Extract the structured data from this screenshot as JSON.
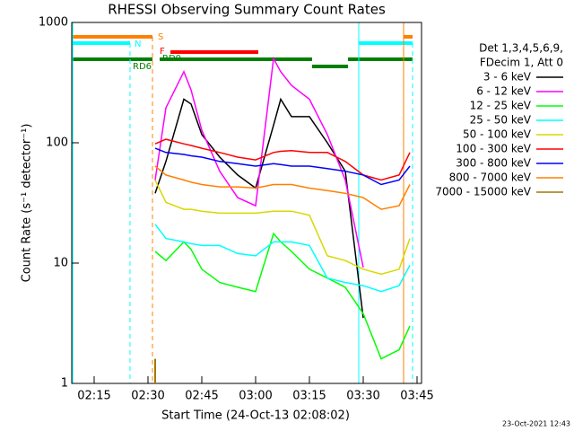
{
  "chart_data": {
    "type": "line",
    "title": "RHESSI Observing Summary Count Rates",
    "x_label": "Start Time (24-Oct-13 02:08:02)",
    "y_label": "Count Rate (s⁻¹ detector⁻¹)",
    "legend_header": [
      "Det 1,3,4,5,6,9,",
      "FDecim 1, Att 0"
    ],
    "footer": "23-Oct-2021 12:43",
    "flags": [
      "S",
      "N",
      "F",
      "RD0",
      "RD6"
    ],
    "log_y": true,
    "xlim": [
      "02:08:45",
      "03:46:15"
    ],
    "xticks": [
      "02:15",
      "02:30",
      "02:45",
      "03:00",
      "03:15",
      "03:30",
      "03:45"
    ],
    "ylim": [
      1,
      1000
    ],
    "yticks": [
      1,
      10,
      100,
      1000
    ],
    "x": [
      "02:32",
      "02:35",
      "02:40",
      "02:42",
      "02:45",
      "02:50",
      "02:55",
      "03:00",
      "03:05",
      "03:07",
      "03:10",
      "03:15",
      "03:20",
      "03:25",
      "03:30",
      "03:35",
      "03:40",
      "03:43"
    ],
    "series": [
      {
        "name": "3 - 6 keV",
        "color": "#000000",
        "values": [
          38,
          70,
          230,
          210,
          117,
          76,
          54,
          42,
          140,
          230,
          165,
          165,
          100,
          58,
          3.5,
          null,
          null,
          null
        ]
      },
      {
        "name": "6 - 12 keV",
        "color": "#ff00ff",
        "values": [
          49,
          195,
          390,
          275,
          127,
          58,
          35,
          30,
          500,
          390,
          300,
          230,
          117,
          49,
          9.2,
          null,
          null,
          null
        ]
      },
      {
        "name": "12 - 25 keV",
        "color": "#00ff00",
        "values": [
          12.5,
          10.5,
          15,
          13,
          8.9,
          6.9,
          6.3,
          5.8,
          17.6,
          15,
          12.5,
          8.9,
          7.5,
          6.3,
          3.8,
          1.6,
          1.9,
          3
        ]
      },
      {
        "name": "25 - 50 keV",
        "color": "#00ffff",
        "values": [
          21,
          16,
          15,
          14.5,
          14,
          14,
          12,
          11.5,
          15,
          15,
          15,
          14,
          7.5,
          6.9,
          6.5,
          5.8,
          6.5,
          9.6
        ]
      },
      {
        "name": "50 - 100 keV",
        "color": "#d8d800",
        "values": [
          49,
          32,
          28,
          28,
          27,
          26,
          26,
          26,
          27,
          27,
          27,
          25,
          11.5,
          10.5,
          8.9,
          8.1,
          8.9,
          16
        ]
      },
      {
        "name": "100 - 300 keV",
        "color": "#ff0000",
        "values": [
          98,
          107,
          98,
          95,
          90,
          83,
          76,
          72,
          83,
          85,
          86,
          83,
          83,
          70,
          54,
          49,
          54,
          83
        ]
      },
      {
        "name": "300 - 800 keV",
        "color": "#0000ff",
        "values": [
          90,
          83,
          80,
          78,
          76,
          70,
          67,
          64,
          67,
          66,
          64,
          64,
          61,
          58,
          54,
          45,
          49,
          64
        ]
      },
      {
        "name": "800 - 7000 keV",
        "color": "#ff8000",
        "values": [
          64,
          54,
          49,
          47,
          45,
          43,
          43,
          42,
          45,
          45,
          45,
          42,
          40,
          38,
          35,
          28,
          30,
          45
        ]
      },
      {
        "name": "7000 - 15000 keV",
        "color": "#a07800",
        "values": [
          1.6,
          null,
          null,
          null,
          null,
          null,
          null,
          null,
          null,
          null,
          null,
          null,
          null,
          null,
          null,
          null,
          null,
          null
        ]
      }
    ]
  }
}
